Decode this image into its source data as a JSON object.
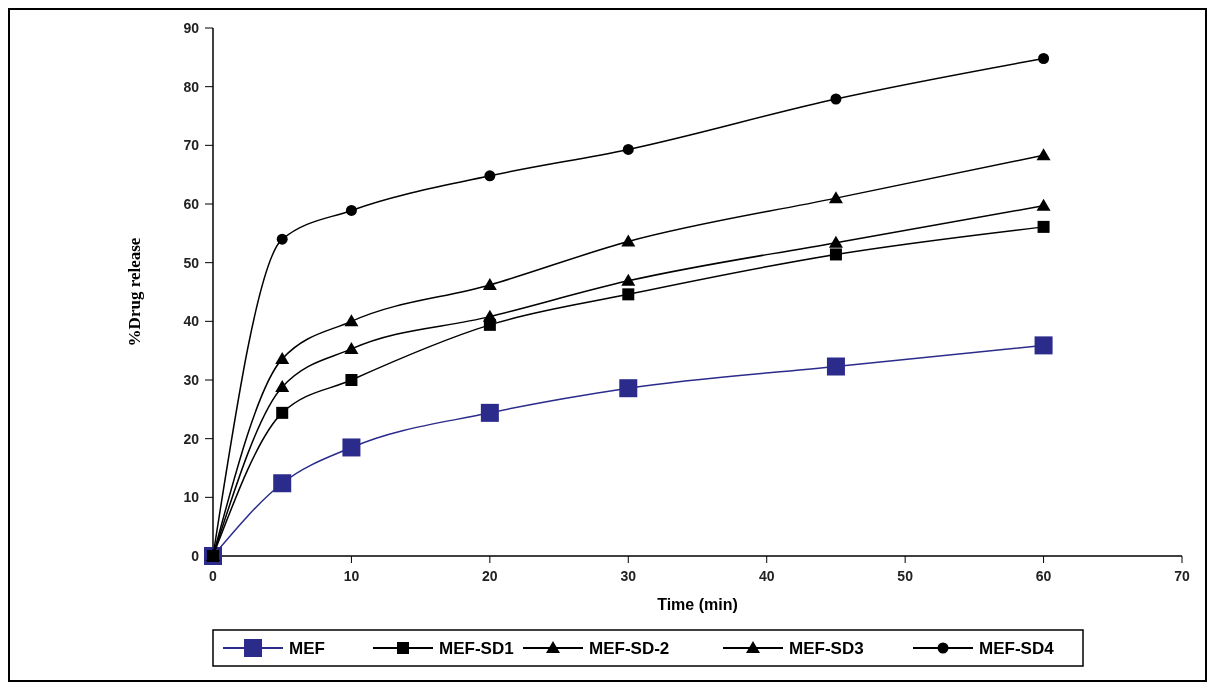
{
  "chart_data": {
    "type": "line",
    "xlabel": "Time (min)",
    "ylabel": "%Drug release",
    "x": [
      0,
      5,
      10,
      20,
      30,
      45,
      60
    ],
    "xlim": [
      0,
      70
    ],
    "xticks": [
      0,
      10,
      20,
      30,
      40,
      50,
      60,
      70
    ],
    "ylim": [
      0,
      90
    ],
    "yticks": [
      0,
      10,
      20,
      30,
      40,
      50,
      60,
      70,
      80,
      90
    ],
    "grid": false,
    "legend": "bottom",
    "line_style": "solid",
    "series": [
      {
        "name": "MEF",
        "color": "#2b2b8c",
        "marker": "square",
        "values": [
          0,
          12.4,
          18.5,
          24.4,
          28.6,
          32.3,
          35.9
        ]
      },
      {
        "name": "MEF-SD1",
        "color": "#000000",
        "marker": "square",
        "values": [
          0,
          24.4,
          30.0,
          39.4,
          44.6,
          51.4,
          56.1
        ]
      },
      {
        "name": "MEF-SD-2",
        "color": "#000000",
        "marker": "triangle",
        "values": [
          0,
          28.8,
          35.3,
          40.8,
          46.9,
          53.4,
          59.7
        ]
      },
      {
        "name": "MEF-SD3",
        "color": "#000000",
        "marker": "triangle",
        "values": [
          0,
          33.6,
          40.0,
          46.2,
          53.6,
          61.0,
          68.3
        ]
      },
      {
        "name": "MEF-SD4",
        "color": "#000000",
        "marker": "circle",
        "values": [
          0,
          54.0,
          58.9,
          64.8,
          69.3,
          77.9,
          84.8
        ]
      }
    ]
  }
}
